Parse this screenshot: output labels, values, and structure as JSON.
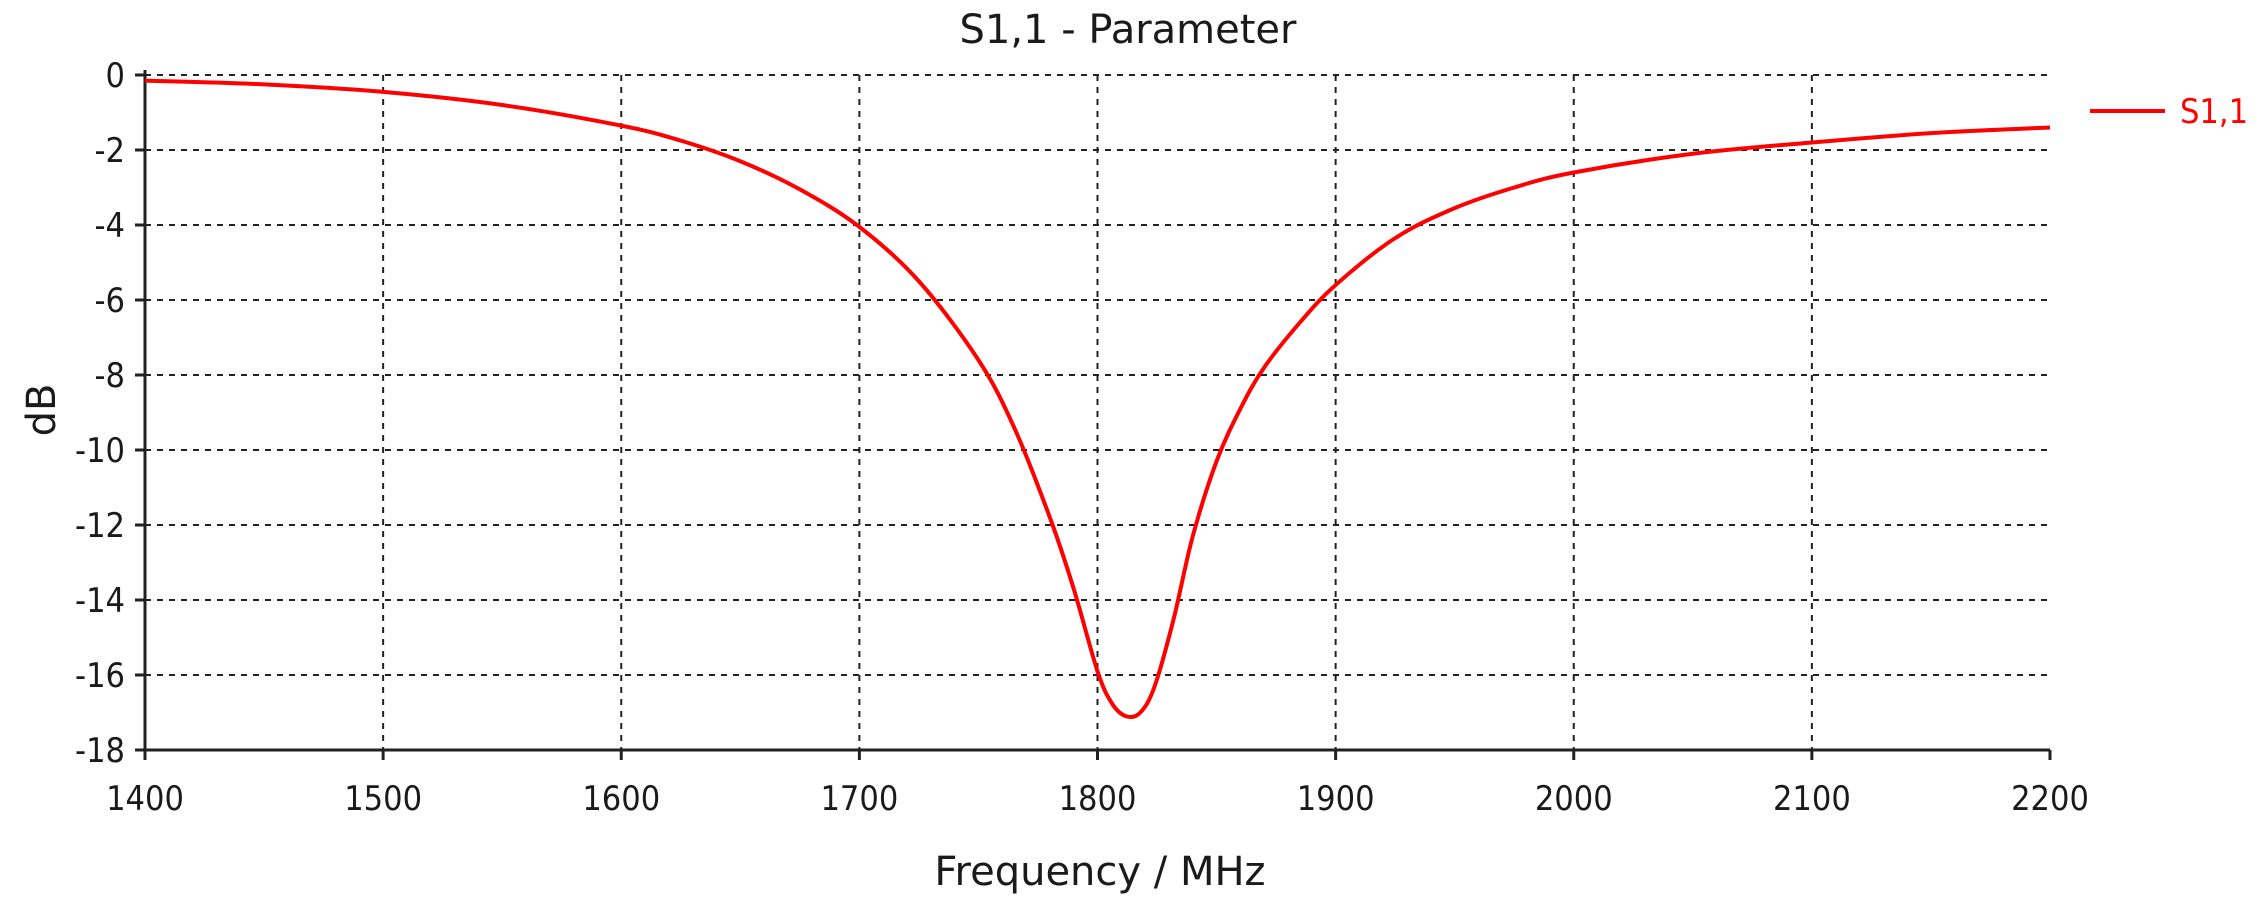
{
  "chart_data": {
    "type": "line",
    "title": "S1,1 - Parameter",
    "xlabel": "Frequency / MHz",
    "ylabel": "dB",
    "xlim": [
      1400,
      2200
    ],
    "ylim": [
      -18,
      0
    ],
    "xticks": [
      "1400",
      "1500",
      "1600",
      "1700",
      "1800",
      "1900",
      "2000",
      "2100",
      "2200"
    ],
    "yticks": [
      "0",
      "-2",
      "-4",
      "-6",
      "-8",
      "-10",
      "-12",
      "-14",
      "-16",
      "-18"
    ],
    "grid": true,
    "legend": "right",
    "series": [
      {
        "name": "S1,1",
        "color": "#ff0000",
        "x": [
          1400,
          1450,
          1500,
          1550,
          1600,
          1625,
          1650,
          1675,
          1700,
          1725,
          1750,
          1765,
          1780,
          1790,
          1800,
          1806,
          1812,
          1818,
          1824,
          1832,
          1840,
          1850,
          1860,
          1870,
          1885,
          1900,
          1925,
          1950,
          1975,
          2000,
          2050,
          2100,
          2150,
          2200
        ],
        "y": [
          -0.15,
          -0.25,
          -0.45,
          -0.8,
          -1.35,
          -1.75,
          -2.3,
          -3.05,
          -4.05,
          -5.5,
          -7.6,
          -9.4,
          -11.8,
          -13.7,
          -15.9,
          -16.75,
          -17.1,
          -17.0,
          -16.3,
          -14.5,
          -12.3,
          -10.3,
          -8.9,
          -7.8,
          -6.6,
          -5.6,
          -4.35,
          -3.55,
          -3.0,
          -2.6,
          -2.1,
          -1.8,
          -1.55,
          -1.4
        ]
      }
    ]
  }
}
